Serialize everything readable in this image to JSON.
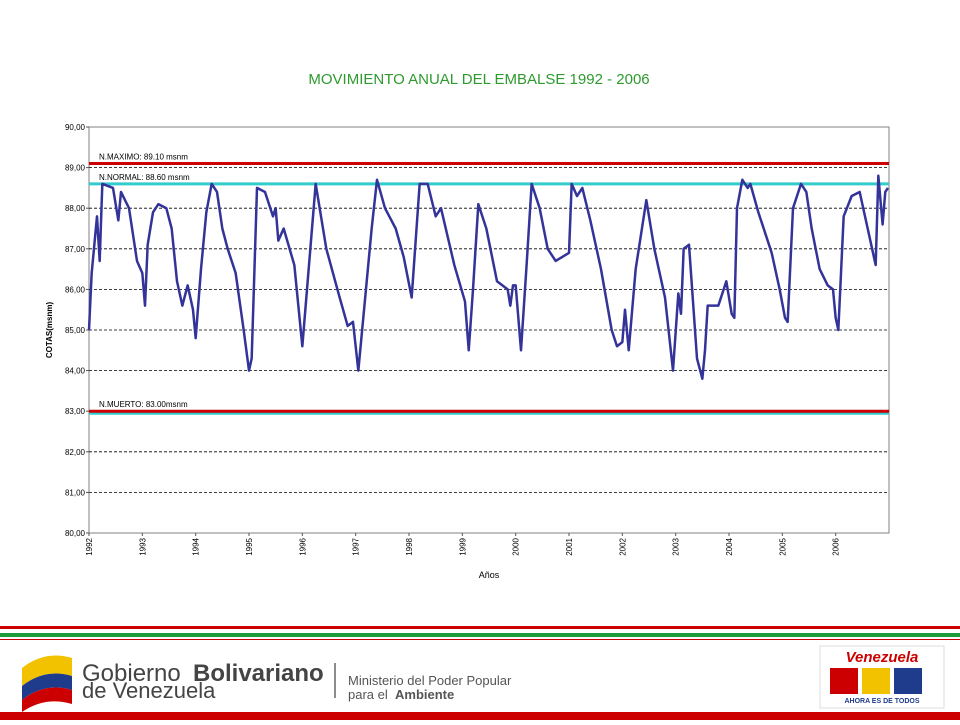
{
  "chart_data": {
    "type": "line",
    "title": "MOVIMIENTO ANUAL DEL EMBALSE 1992 - 2006",
    "x_label": "Años",
    "y_label": "COTAS(msnm)",
    "xlim": [
      1992,
      2007
    ],
    "xticks": [
      1992,
      1993,
      1994,
      1995,
      1996,
      1997,
      1998,
      1999,
      2000,
      2001,
      2002,
      2003,
      2004,
      2005,
      2006
    ],
    "ylim": [
      80,
      90
    ],
    "yticks": [
      {
        "value": 80,
        "label": "80,00"
      },
      {
        "value": 81,
        "label": "81,00"
      },
      {
        "value": 82,
        "label": "82,00"
      },
      {
        "value": 83,
        "label": "83,00"
      },
      {
        "value": 84,
        "label": "84,00"
      },
      {
        "value": 85,
        "label": "85,00"
      },
      {
        "value": 86,
        "label": "86,00"
      },
      {
        "value": 87,
        "label": "87,00"
      },
      {
        "value": 88,
        "label": "88,00"
      },
      {
        "value": 89,
        "label": "89,00"
      },
      {
        "value": 90,
        "label": "90,00"
      }
    ],
    "grid": true,
    "reference_lines": [
      {
        "label": "N.MAXIMO: 89.10 msnm",
        "value": 89.1,
        "color": "#cc0000"
      },
      {
        "label": "N.NORMAL: 88.60 msnm",
        "value": 88.6,
        "color": "#33cccc"
      },
      {
        "value": 82.95,
        "color": "#33cccc"
      },
      {
        "label": "N.MUERTO: 83.00msnm",
        "value": 83.0,
        "color": "#cc0000"
      }
    ],
    "x": [
      1992.0,
      1992.05,
      1992.15,
      1992.2,
      1992.25,
      1992.45,
      1992.55,
      1992.6,
      1992.75,
      1992.9,
      1993.0,
      1993.05,
      1993.1,
      1993.2,
      1993.3,
      1993.45,
      1993.55,
      1993.65,
      1993.75,
      1993.85,
      1993.95,
      1994.0,
      1994.1,
      1994.2,
      1994.3,
      1994.4,
      1994.5,
      1994.6,
      1994.75,
      1994.9,
      1995.0,
      1995.05,
      1995.15,
      1995.3,
      1995.45,
      1995.5,
      1995.55,
      1995.65,
      1995.85,
      1996.0,
      1996.25,
      1996.45,
      1996.7,
      1996.85,
      1996.95,
      1997.05,
      1997.15,
      1997.3,
      1997.4,
      1997.55,
      1997.75,
      1997.9,
      1998.05,
      1998.2,
      1998.35,
      1998.5,
      1998.6,
      1998.85,
      1999.05,
      1999.12,
      1999.2,
      1999.3,
      1999.45,
      1999.65,
      1999.85,
      1999.9,
      1999.95,
      2000.0,
      2000.1,
      2000.2,
      2000.3,
      2000.45,
      2000.6,
      2000.75,
      2001.0,
      2001.05,
      2001.15,
      2001.25,
      2001.4,
      2001.6,
      2001.8,
      2001.9,
      2002.0,
      2002.05,
      2002.12,
      2002.25,
      2002.45,
      2002.6,
      2002.8,
      2002.95,
      2003.05,
      2003.1,
      2003.15,
      2003.25,
      2003.4,
      2003.5,
      2003.55,
      2003.6,
      2003.8,
      2003.95,
      2004.05,
      2004.1,
      2004.15,
      2004.25,
      2004.35,
      2004.4,
      2004.55,
      2004.8,
      2004.95,
      2005.05,
      2005.1,
      2005.2,
      2005.35,
      2005.45,
      2005.55,
      2005.7,
      2005.85,
      2005.95,
      2006.0,
      2006.05,
      2006.15,
      2006.3,
      2006.45,
      2006.6,
      2006.75,
      2006.8,
      2006.88,
      2006.93,
      2006.98
    ],
    "series": [
      {
        "name": "Cota",
        "color": "#333399",
        "values": [
          85.0,
          86.4,
          87.8,
          86.7,
          88.6,
          88.5,
          87.7,
          88.4,
          88.0,
          86.7,
          86.4,
          85.6,
          87.1,
          87.9,
          88.1,
          88.0,
          87.5,
          86.2,
          85.6,
          86.1,
          85.5,
          84.8,
          86.5,
          87.9,
          88.6,
          88.4,
          87.5,
          87.0,
          86.4,
          85.0,
          84.0,
          84.3,
          88.5,
          88.4,
          87.8,
          88.0,
          87.2,
          87.5,
          86.6,
          84.6,
          88.6,
          87.0,
          85.8,
          85.1,
          85.2,
          84.0,
          85.4,
          87.5,
          88.7,
          88.0,
          87.5,
          86.8,
          85.8,
          88.6,
          88.6,
          87.8,
          88.0,
          86.6,
          85.7,
          84.5,
          86.0,
          88.1,
          87.5,
          86.2,
          86.0,
          85.6,
          86.1,
          86.1,
          84.5,
          86.5,
          88.6,
          88.0,
          87.0,
          86.7,
          86.9,
          88.6,
          88.3,
          88.5,
          87.7,
          86.5,
          85.0,
          84.6,
          84.7,
          85.5,
          84.5,
          86.5,
          88.2,
          87.0,
          85.8,
          84.0,
          85.9,
          85.4,
          87.0,
          87.1,
          84.3,
          83.8,
          84.5,
          85.6,
          85.6,
          86.2,
          85.4,
          85.3,
          88.0,
          88.7,
          88.5,
          88.6,
          87.9,
          86.9,
          86.0,
          85.3,
          85.2,
          88.0,
          88.6,
          88.4,
          87.5,
          86.5,
          86.1,
          86.0,
          85.3,
          85.0,
          87.8,
          88.3,
          88.4,
          87.5,
          86.6,
          88.8,
          87.6,
          88.4,
          88.5
        ]
      }
    ]
  },
  "footer": {
    "gov_word1": "Gobierno",
    "gov_word2": "Bolivariano",
    "gov_line2": "de Venezuela",
    "ministry_line1": "Ministerio del Poder Popular",
    "ministry_line2a": "para el",
    "ministry_line2b": "Ambiente",
    "brand": "Venezuela",
    "slogan": "AHORA ES DE TODOS"
  }
}
